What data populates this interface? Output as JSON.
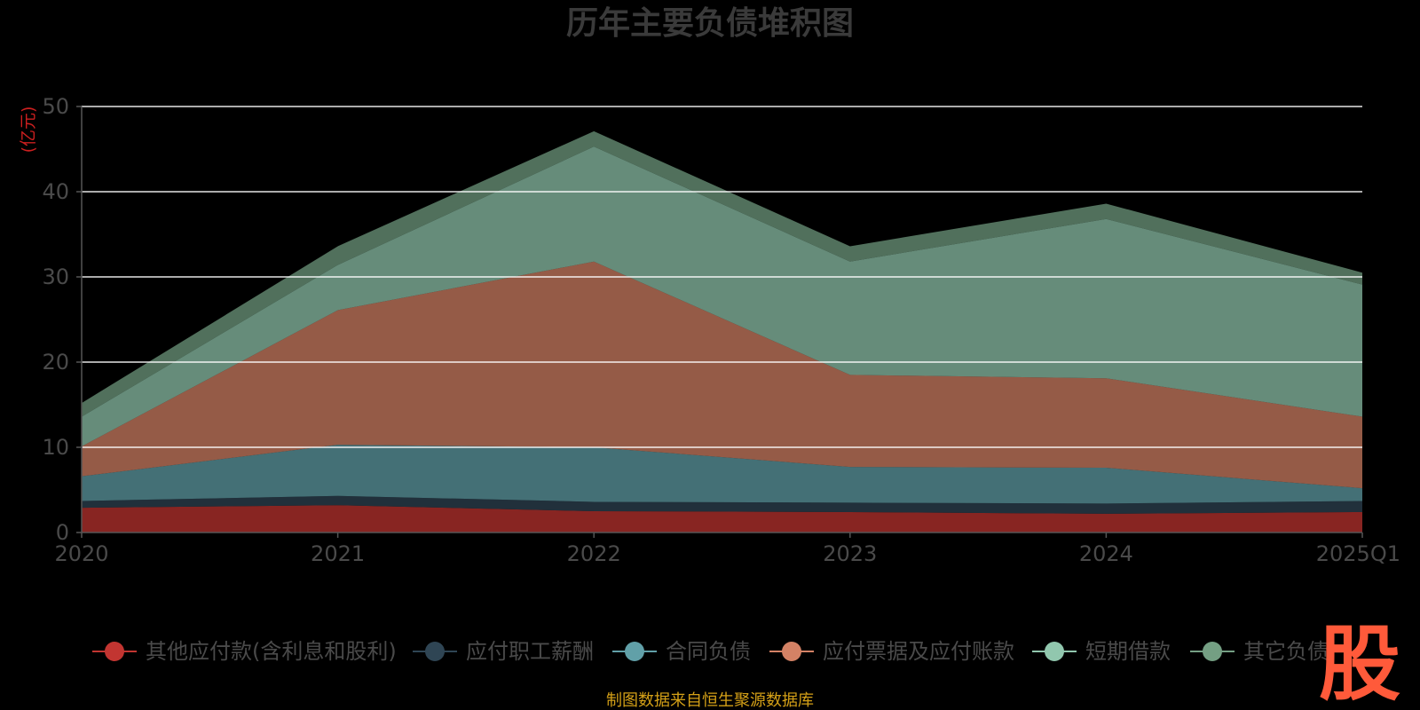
{
  "chart_data": {
    "type": "area",
    "stacked": true,
    "title": "历年主要负债堆积图",
    "ylabel": "(亿元)",
    "categories": [
      "2020",
      "2021",
      "2022",
      "2023",
      "2024",
      "2025Q1"
    ],
    "ylim": [
      0,
      50
    ],
    "yticks": [
      0,
      10,
      20,
      30,
      40,
      50
    ],
    "grid": true,
    "legend_position": "bottom",
    "series": [
      {
        "name": "其他应付款(含利息和股利)",
        "color": "#c23531",
        "values": [
          2.9,
          3.2,
          2.5,
          2.4,
          2.2,
          2.4
        ]
      },
      {
        "name": "应付职工薪酬",
        "color": "#2f4554",
        "values": [
          0.8,
          1.1,
          1.1,
          1.1,
          1.2,
          1.3
        ]
      },
      {
        "name": "合同负债",
        "color": "#61a0a8",
        "values": [
          2.9,
          6.0,
          6.4,
          4.2,
          4.2,
          1.5
        ]
      },
      {
        "name": "应付票据及应付账款",
        "color": "#d48265",
        "values": [
          3.5,
          15.8,
          21.8,
          10.8,
          10.5,
          8.4
        ]
      },
      {
        "name": "短期借款",
        "color": "#91c7ae",
        "values": [
          3.5,
          5.3,
          13.5,
          13.3,
          18.7,
          15.5
        ]
      },
      {
        "name": "其它负债",
        "color": "#749f83",
        "values": [
          1.6,
          2.2,
          1.8,
          1.8,
          1.8,
          1.4
        ]
      }
    ]
  },
  "source": "制图数据来自恒生聚源数据库",
  "watermark": "股"
}
